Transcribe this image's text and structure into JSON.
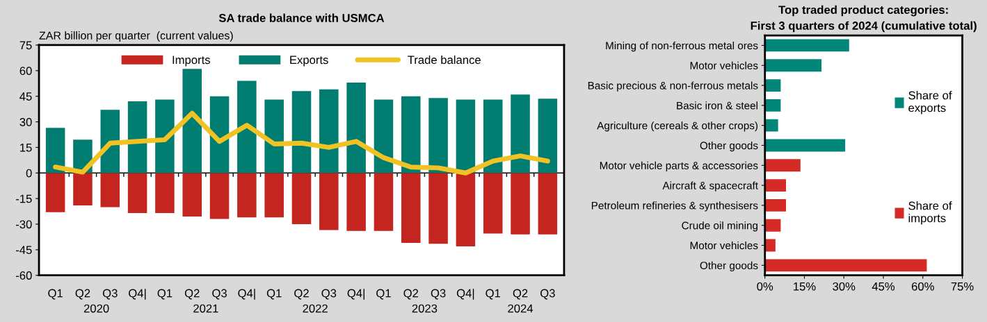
{
  "chart_data": [
    {
      "type": "bar",
      "title": "SA trade balance with USMCA",
      "ylabel": "ZAR billion per quarter  (current values)",
      "stacked": true,
      "categories": [
        "Q1",
        "Q2",
        "Q3",
        "Q4|",
        "Q1",
        "Q2",
        "Q3",
        "Q4|",
        "Q1",
        "Q2",
        "Q3",
        "Q4|",
        "Q1",
        "Q2",
        "Q3",
        "Q4|",
        "Q1",
        "Q2",
        "Q3"
      ],
      "series": [
        {
          "name": "Imports",
          "color": "#c4261f",
          "values": [
            -23,
            -19,
            -20,
            -23.5,
            -23.5,
            -25.5,
            -27,
            -26,
            -26,
            -30,
            -33.5,
            -34,
            -34,
            -41,
            -41.5,
            -43,
            -35.5,
            -36,
            -36
          ]
        },
        {
          "name": "Exports",
          "color": "#007d70",
          "values": [
            26.5,
            19.5,
            37,
            42,
            43,
            61,
            45,
            54,
            43,
            48,
            49,
            53,
            43,
            45,
            44,
            43,
            43,
            46,
            43.5
          ]
        },
        {
          "name": "Trade balance",
          "type": "line",
          "color": "#f0c224",
          "values": [
            3.5,
            0.5,
            17.5,
            18.5,
            19.5,
            35,
            18.5,
            28,
            17,
            17.5,
            15,
            18.5,
            9,
            3.5,
            3,
            0,
            7,
            10,
            7
          ]
        }
      ],
      "ylim": [
        -60,
        75
      ],
      "yticks": [
        -60,
        -45,
        -30,
        -15,
        0,
        15,
        30,
        45,
        60,
        75
      ],
      "legend": "top",
      "annotations": [
        "2020",
        "2021",
        "2022",
        "2023",
        "2024"
      ]
    },
    {
      "type": "bar",
      "orientation": "horizontal",
      "title": "Top traded product categories:\nFirst 3 quarters of 2024 (cumulative total)",
      "categories": [
        "Mining of non-ferrous metal ores",
        "Motor vehicles",
        "Basic precious & non-ferrous metals",
        "Basic iron & steel",
        "Agriculture (cereals & other crops)",
        "Other goods",
        "Motor vehicle parts & accessories",
        "Aircraft & spacecraft",
        "Petroleum refineries & synthesisers",
        "Crude oil mining",
        "Motor vehicles",
        "Other goods"
      ],
      "series": [
        {
          "name": "Share of\nexports",
          "color": "#00877a",
          "values": [
            32,
            21.5,
            6,
            6,
            5,
            30.5,
            null,
            null,
            null,
            null,
            null,
            null
          ]
        },
        {
          "name": "Share of\nimports",
          "color": "#d52b26",
          "values": [
            null,
            null,
            null,
            null,
            null,
            null,
            13.5,
            8,
            8,
            6,
            4,
            61.5
          ]
        }
      ],
      "xlim": [
        0,
        75
      ],
      "xticks": [
        {
          "value": 0,
          "label": "0%"
        },
        {
          "value": 15,
          "label": "15%"
        },
        {
          "value": 30,
          "label": "30%"
        },
        {
          "value": 45,
          "label": "45%"
        },
        {
          "value": 60,
          "label": "60%"
        },
        {
          "value": 75,
          "label": "75%"
        }
      ],
      "grid": false,
      "legend": "right"
    }
  ]
}
